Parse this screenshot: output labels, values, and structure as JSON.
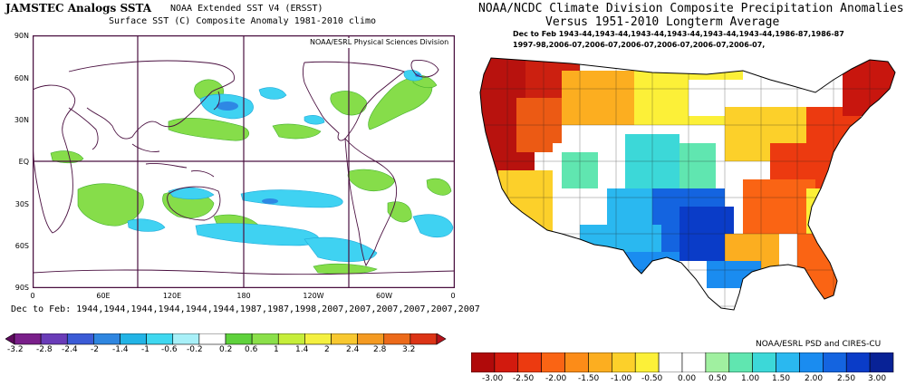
{
  "left_panel": {
    "title": "JAMSTEC Analogs SSTA",
    "subtitle_line1": "NOAA Extended SST V4 (ERSST)",
    "subtitle_line2": "Surface SST (C) Composite Anomaly 1981-2010 climo",
    "credit": "NOAA/ESRL Physical Sciences Division",
    "y_axis_labels": [
      "90N",
      "60N",
      "30N",
      "EQ",
      "30S",
      "60S",
      "90S"
    ],
    "x_axis_labels": [
      "0",
      "60E",
      "120E",
      "180",
      "120W",
      "60W",
      "0"
    ],
    "dates_text": "Dec to Feb: 1944,1944,1944,1944,1944,1944,1987,1987,1998,2007,2007,2007,2007,2007,2007",
    "colorbar": {
      "tick_labels": [
        "-3.2",
        "-2.8",
        "-2.4",
        "-2",
        "-1.4",
        "-1",
        "-0.6",
        "-0.2",
        "0.2",
        "0.6",
        "1",
        "1.4",
        "2",
        "2.4",
        "2.8",
        "3.2"
      ],
      "colors": [
        "#5e0a5e",
        "#7a1f8a",
        "#6a3cb8",
        "#3b5bd6",
        "#2f86e0",
        "#22b4e6",
        "#3fd8f0",
        "#a8f0f8",
        "#ffffff",
        "#5fd23c",
        "#8be04a",
        "#c6ee3a",
        "#f4f040",
        "#f8c830",
        "#f49a22",
        "#ec6a1a",
        "#dc3416",
        "#b4121a"
      ]
    }
  },
  "right_panel": {
    "title_line1": "NOAA/NCDC Climate Division Composite Precipitation Anomalies (in)",
    "title_line2": "Versus 1951-2010 Longterm Average",
    "dates_line1": "Dec to Feb  1943-44,1943-44,1943-44,1943-44,1943-44,1943-44,1986-87,1986-87",
    "dates_line2": "1997-98,2006-07,2006-07,2006-07,2006-07,2006-07,2006-07,",
    "credit": "NOAA/ESRL PSD and CIRES-CU",
    "colorbar": {
      "tick_labels": [
        "-3.00",
        "-2.50",
        "-2.00",
        "-1.50",
        "-1.00",
        "-0.50",
        "0.00",
        "0.50",
        "1.00",
        "1.50",
        "2.00",
        "2.50",
        "3.00"
      ],
      "colors": [
        "#b00a0a",
        "#d21a0e",
        "#ec3a10",
        "#fa6414",
        "#fc8c18",
        "#fcae20",
        "#fcd02a",
        "#fcf038",
        "#ffffff",
        "#ffffff",
        "#a0f0a0",
        "#60e6b0",
        "#3cd8d8",
        "#2ab8f0",
        "#1a8cf0",
        "#1464e0",
        "#0a3cc8",
        "#082296"
      ]
    }
  }
}
